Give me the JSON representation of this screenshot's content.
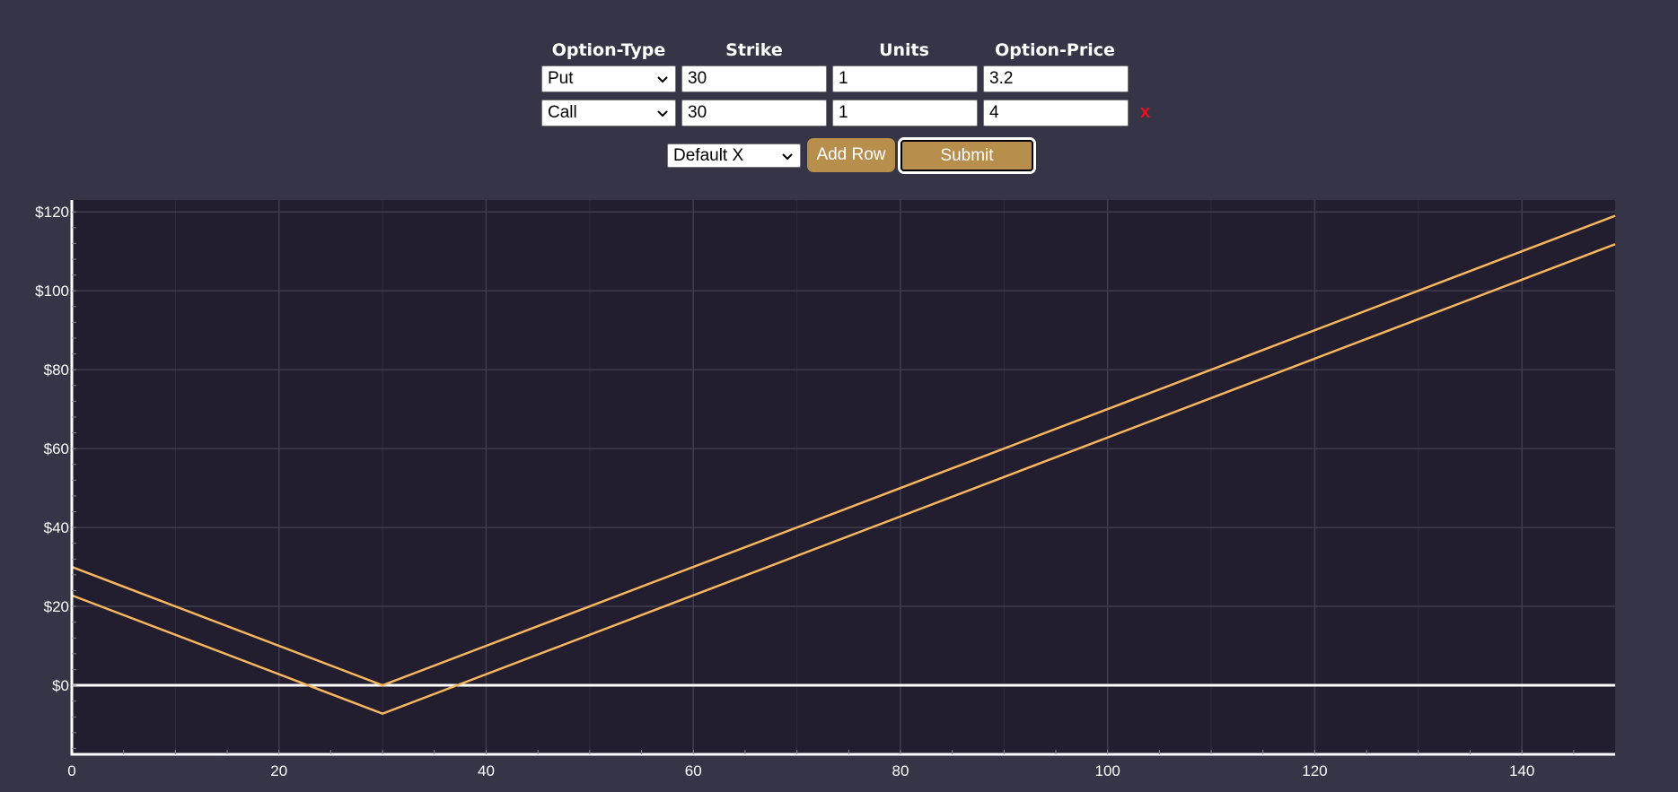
{
  "form": {
    "headers": [
      "Option-Type",
      "Strike",
      "Units",
      "Option-Price"
    ],
    "rows": [
      {
        "type": "Put",
        "strike": "30",
        "units": "1",
        "price": "3.2",
        "removable": false
      },
      {
        "type": "Call",
        "strike": "30",
        "units": "1",
        "price": "4",
        "removable": true
      }
    ],
    "remove_label": "x",
    "x_range_select": "Default X",
    "add_row_label": "Add Row",
    "submit_label": "Submit"
  },
  "colors": {
    "background": "#363447",
    "plot_background": "#231e2f",
    "line": "#f7b65d",
    "grid": "#3f3c50",
    "zero_line": "#ffffff",
    "button": "#b88e4d",
    "remove": "#e8121e"
  },
  "chart_data": {
    "type": "line",
    "title": "",
    "xlabel": "",
    "ylabel": "",
    "xlim": [
      0,
      149
    ],
    "ylim": [
      -17.5,
      123
    ],
    "grid": true,
    "x_ticks": [
      0,
      20,
      40,
      60,
      80,
      100,
      120,
      140
    ],
    "x_tick_labels": [
      "0",
      "20",
      "40",
      "60",
      "80",
      "100",
      "120",
      "140"
    ],
    "y_ticks": [
      0,
      20,
      40,
      60,
      80,
      100,
      120
    ],
    "y_tick_labels": [
      "$0",
      "$20",
      "$40",
      "$60",
      "$80",
      "$100",
      "$120"
    ],
    "series": [
      {
        "x": [
          0,
          30,
          149
        ],
        "y": [
          30,
          0,
          119
        ]
      },
      {
        "x": [
          0,
          30,
          149
        ],
        "y": [
          22.8,
          -7.2,
          111.8
        ]
      }
    ]
  }
}
